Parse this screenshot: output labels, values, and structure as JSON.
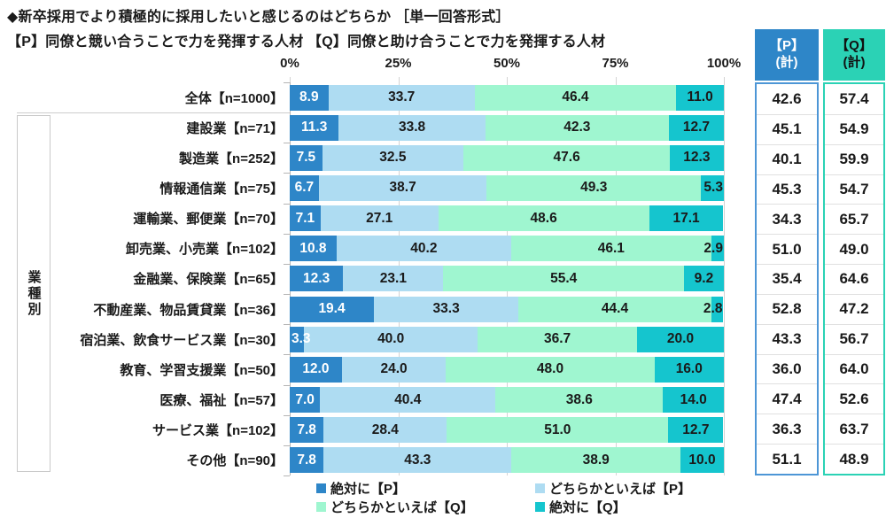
{
  "title": "◆新卒採用でより積極的に採用したいと感じるのはどちらか ［単一回答形式］",
  "subtitle": "【P】同僚と競い合うことで力を発揮する人材 【Q】同僚と助け合うことで力を発揮する人材",
  "group_label": "業種別",
  "summary": {
    "p_header": "【P】\n(計)",
    "q_header": "【Q】\n(計)"
  },
  "colors": {
    "p_strong": "#2e86c8",
    "p_lean": "#aedcf2",
    "q_lean": "#9ff6d0",
    "q_strong": "#15c5ce",
    "p_header_bg": "#2e86c8",
    "q_header_bg": "#2bd2b5",
    "p_col_border": "#4d96d6",
    "q_col_border": "#2bd2b5",
    "gridline": "#d4d4d4"
  },
  "legend": [
    {
      "label": "絶対に【P】",
      "color_key": "p_strong"
    },
    {
      "label": "どちらかといえば【P】",
      "color_key": "p_lean"
    },
    {
      "label": "どちらかといえば【Q】",
      "color_key": "q_lean"
    },
    {
      "label": "絶対に【Q】",
      "color_key": "q_strong"
    }
  ],
  "chart_data": {
    "type": "bar",
    "stacked": true,
    "orientation": "horizontal",
    "value_unit": "%",
    "x_axis": {
      "range": [
        0,
        100
      ],
      "ticks": [
        {
          "label": "0%",
          "value": 0
        },
        {
          "label": "25%",
          "value": 25
        },
        {
          "label": "50%",
          "value": 50
        },
        {
          "label": "75%",
          "value": 75
        },
        {
          "label": "100%",
          "value": 100
        }
      ]
    },
    "series_names": [
      "絶対に【P】",
      "どちらかといえば【P】",
      "どちらかといえば【Q】",
      "絶対に【Q】"
    ],
    "rows": [
      {
        "label": "全体【n=1000】",
        "values": [
          "8.9",
          "33.7",
          "46.4",
          "11.0"
        ],
        "p_total": "42.6",
        "q_total": "57.4"
      },
      {
        "label": "建設業【n=71】",
        "values": [
          "11.3",
          "33.8",
          "42.3",
          "12.7"
        ],
        "p_total": "45.1",
        "q_total": "54.9"
      },
      {
        "label": "製造業【n=252】",
        "values": [
          "7.5",
          "32.5",
          "47.6",
          "12.3"
        ],
        "p_total": "40.1",
        "q_total": "59.9"
      },
      {
        "label": "情報通信業【n=75】",
        "values": [
          "6.7",
          "38.7",
          "49.3",
          "5.3"
        ],
        "p_total": "45.3",
        "q_total": "54.7"
      },
      {
        "label": "運輸業、郵便業【n=70】",
        "values": [
          "7.1",
          "27.1",
          "48.6",
          "17.1"
        ],
        "p_total": "34.3",
        "q_total": "65.7"
      },
      {
        "label": "卸売業、小売業【n=102】",
        "values": [
          "10.8",
          "40.2",
          "46.1",
          "2.9"
        ],
        "p_total": "51.0",
        "q_total": "49.0"
      },
      {
        "label": "金融業、保険業【n=65】",
        "values": [
          "12.3",
          "23.1",
          "55.4",
          "9.2"
        ],
        "p_total": "35.4",
        "q_total": "64.6"
      },
      {
        "label": "不動産業、物品賃貸業【n=36】",
        "values": [
          "19.4",
          "33.3",
          "44.4",
          "2.8"
        ],
        "p_total": "52.8",
        "q_total": "47.2"
      },
      {
        "label": "宿泊業、飲食サービス業【n=30】",
        "values": [
          "3.3",
          "40.0",
          "36.7",
          "20.0"
        ],
        "p_total": "43.3",
        "q_total": "56.7"
      },
      {
        "label": "教育、学習支援業【n=50】",
        "values": [
          "12.0",
          "24.0",
          "48.0",
          "16.0"
        ],
        "p_total": "36.0",
        "q_total": "64.0"
      },
      {
        "label": "医療、福祉【n=57】",
        "values": [
          "7.0",
          "40.4",
          "38.6",
          "14.0"
        ],
        "p_total": "47.4",
        "q_total": "52.6"
      },
      {
        "label": "サービス業【n=102】",
        "values": [
          "7.8",
          "28.4",
          "51.0",
          "12.7"
        ],
        "p_total": "36.3",
        "q_total": "63.7"
      },
      {
        "label": "その他【n=90】",
        "values": [
          "7.8",
          "43.3",
          "38.9",
          "10.0"
        ],
        "p_total": "51.1",
        "q_total": "48.9"
      }
    ]
  }
}
